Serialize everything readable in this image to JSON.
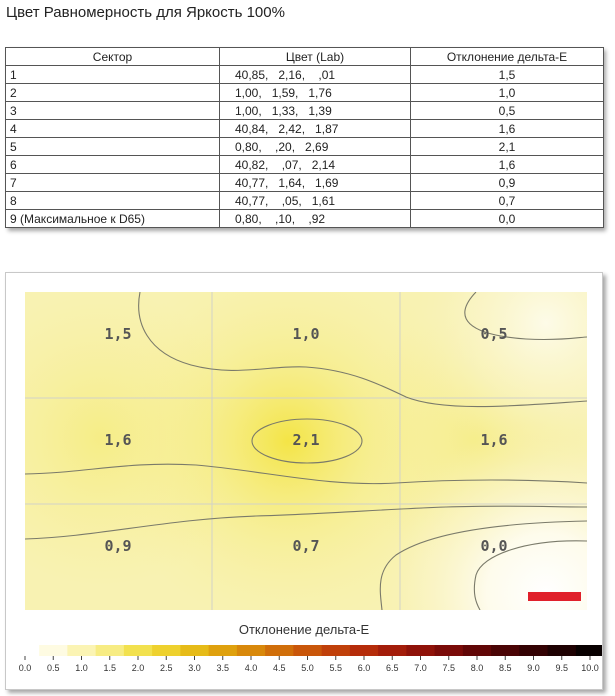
{
  "title": "Цвет Равномерность для Яркость 100%",
  "table": {
    "headers": [
      "Сектор",
      "Цвет (Lab)",
      "Отклонение дельта-E"
    ],
    "rows": [
      {
        "sector": "1",
        "lab": "40,85,   2,16,    ,01",
        "de": "1,5"
      },
      {
        "sector": "2",
        "lab": "1,00,   1,59,   1,76",
        "de": "1,0"
      },
      {
        "sector": "3",
        "lab": "1,00,   1,33,   1,39",
        "de": "0,5"
      },
      {
        "sector": "4",
        "lab": "40,84,   2,42,   1,87",
        "de": "1,6"
      },
      {
        "sector": "5",
        "lab": "0,80,    ,20,   2,69",
        "de": "2,1"
      },
      {
        "sector": "6",
        "lab": "40,82,    ,07,   2,14",
        "de": "1,6"
      },
      {
        "sector": "7",
        "lab": "40,77,   1,64,   1,69",
        "de": "0,9"
      },
      {
        "sector": "8",
        "lab": "40,77,    ,05,   1,61",
        "de": "0,7"
      },
      {
        "sector": "9 (Максимальное к D65)",
        "lab": "0,80,    ,10,    ,92",
        "de": "0,0"
      }
    ]
  },
  "heatmap": {
    "cells": [
      [
        "1,5",
        "1,0",
        "0,5"
      ],
      [
        "1,6",
        "2,1",
        "1,6"
      ],
      [
        "0,9",
        "0,7",
        "0,0"
      ]
    ],
    "marker_color": "#e0202a",
    "colorbar_title": "Отклонение дельта-E",
    "colorbar_ticks": [
      "0.0",
      "0.5",
      "1.0",
      "1.5",
      "2.0",
      "2.5",
      "3.0",
      "3.5",
      "4.0",
      "4.5",
      "5.0",
      "5.5",
      "6.0",
      "6.5",
      "7.0",
      "7.5",
      "8.0",
      "8.5",
      "9.0",
      "9.5",
      "10.0"
    ],
    "colorbar_colors": [
      "#ffffff",
      "#fefbe2",
      "#fbf4b4",
      "#f7ec83",
      "#f2e14e",
      "#eed12e",
      "#e6bb18",
      "#dfa10e",
      "#d8880b",
      "#d06e0a",
      "#c9560a",
      "#c0400a",
      "#b52c0a",
      "#a31d0a",
      "#8f1209",
      "#7a0b08",
      "#610606",
      "#4a0405",
      "#330203",
      "#1e0102",
      "#080000"
    ]
  }
}
